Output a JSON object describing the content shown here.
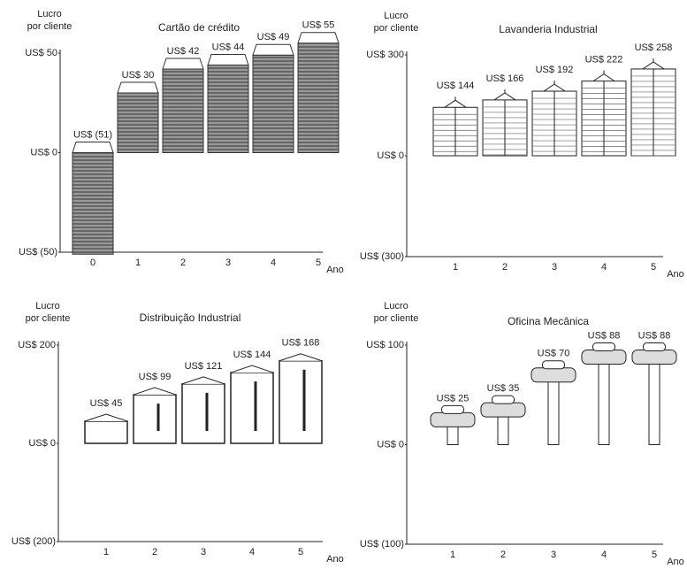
{
  "chart_data": [
    {
      "type": "bar",
      "title": "Cartão de crédito",
      "ylabel": [
        "Lucro",
        "por cliente"
      ],
      "xlabel": "Ano",
      "categories": [
        "0",
        "1",
        "2",
        "3",
        "4",
        "5"
      ],
      "values": [
        -51,
        30,
        42,
        44,
        49,
        55
      ],
      "value_labels": [
        "US$ (51)",
        "US$ 30",
        "US$ 42",
        "US$ 44",
        "US$ 49",
        "US$ 55"
      ],
      "color": "#777777",
      "ylim": [
        -50,
        50
      ],
      "yticks": [
        {
          "value": 50,
          "label": "US$ 50"
        },
        {
          "value": 0,
          "label": "US$ 0"
        },
        {
          "value": -50,
          "label": "US$ (50)"
        }
      ]
    },
    {
      "type": "bar",
      "title": "Lavanderia Industrial",
      "ylabel": [
        "Lucro",
        "por cliente"
      ],
      "xlabel": "Ano",
      "categories": [
        "1",
        "2",
        "3",
        "4",
        "5"
      ],
      "values": [
        144,
        166,
        192,
        222,
        258
      ],
      "value_labels": [
        "US$ 144",
        "US$ 166",
        "US$ 192",
        "US$ 222",
        "US$ 258"
      ],
      "color": "#ffffff",
      "ylim": [
        -300,
        300
      ],
      "yticks": [
        {
          "value": 300,
          "label": "US$ 300"
        },
        {
          "value": 0,
          "label": "US$ 0"
        },
        {
          "value": -300,
          "label": "US$ (300)"
        }
      ]
    },
    {
      "type": "bar",
      "title": "Distribuição Industrial",
      "ylabel": [
        "Lucro",
        "por cliente"
      ],
      "xlabel": "Ano",
      "categories": [
        "1",
        "2",
        "3",
        "4",
        "5"
      ],
      "values": [
        45,
        99,
        121,
        144,
        168
      ],
      "value_labels": [
        "US$ 45",
        "US$ 99",
        "US$ 121",
        "US$ 144",
        "US$ 168"
      ],
      "color": "#ffffff",
      "ylim": [
        -200,
        200
      ],
      "yticks": [
        {
          "value": 200,
          "label": "US$ 200"
        },
        {
          "value": 0,
          "label": "US$ 0"
        },
        {
          "value": -200,
          "label": "US$ (200)"
        }
      ]
    },
    {
      "type": "bar",
      "title": "Oficina Mecânica",
      "ylabel": [
        "Lucro",
        "por cliente"
      ],
      "xlabel": "Ano",
      "categories": [
        "1",
        "2",
        "3",
        "4",
        "5"
      ],
      "values": [
        25,
        35,
        70,
        88,
        88
      ],
      "value_labels": [
        "US$ 25",
        "US$ 35",
        "US$ 70",
        "US$ 88",
        "US$ 88"
      ],
      "color": "#ffffff",
      "ylim": [
        -100,
        100
      ],
      "yticks": [
        {
          "value": 100,
          "label": "US$ 100"
        },
        {
          "value": 0,
          "label": "US$ 0"
        },
        {
          "value": -100,
          "label": "US$ (100)"
        }
      ]
    }
  ]
}
